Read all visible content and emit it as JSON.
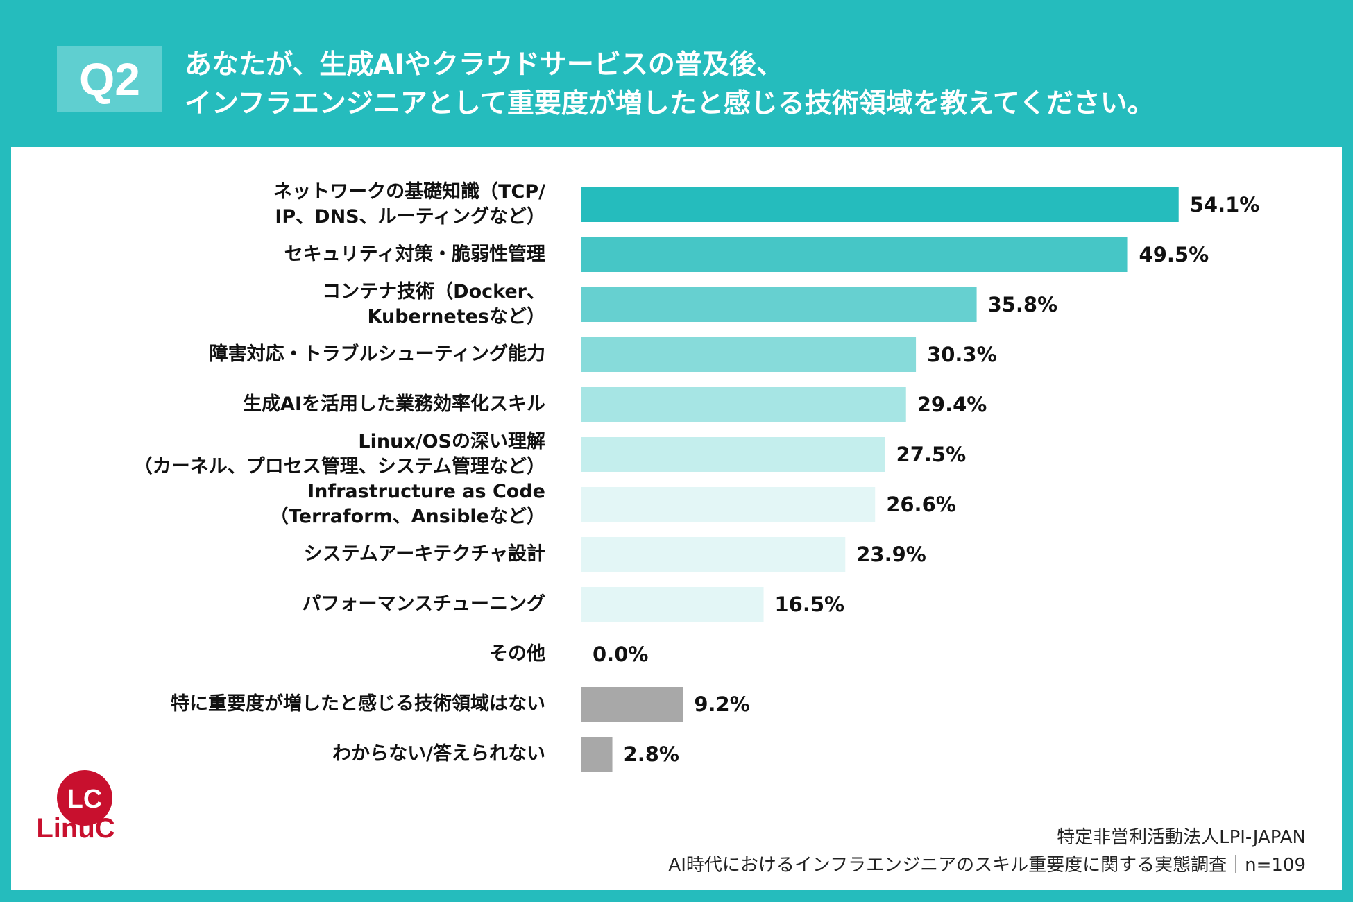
{
  "header": {
    "badge": "Q2",
    "question_line1": "あなたが、生成AIやクラウドサービスの普及後、",
    "question_line2": "インフラエンジニアとして重要度が増したと感じる技術領域を教えてください。"
  },
  "chart_data": {
    "type": "bar",
    "orientation": "horizontal",
    "unit": "%",
    "xlim": [
      0,
      100
    ],
    "categories": [
      [
        "ネットワークの基礎知識（TCP/",
        "IP、DNS、ルーティングなど）"
      ],
      [
        "セキュリティ対策・脆弱性管理"
      ],
      [
        "コンテナ技術（Docker、",
        "Kubernetesなど）"
      ],
      [
        "障害対応・トラブルシューティング能力"
      ],
      [
        "生成AIを活用した業務効率化スキル"
      ],
      [
        "Linux/OSの深い理解",
        "（カーネル、プロセス管理、システム管理など）"
      ],
      [
        "Infrastructure as Code",
        "（Terraform、Ansibleなど）"
      ],
      [
        "システムアーキテクチャ設計"
      ],
      [
        "パフォーマンスチューニング"
      ],
      [
        "その他"
      ],
      [
        "特に重要度が増したと感じる技術領域はない"
      ],
      [
        "わからない/答えられない"
      ]
    ],
    "values": [
      54.1,
      49.5,
      35.8,
      30.3,
      29.4,
      27.5,
      26.6,
      23.9,
      16.5,
      0.0,
      9.2,
      2.8
    ],
    "value_labels": [
      "54.1%",
      "49.5%",
      "35.8%",
      "30.3%",
      "29.4%",
      "27.5%",
      "26.6%",
      "23.9%",
      "16.5%",
      "0.0%",
      "9.2%",
      "2.8%"
    ],
    "bar_colors": [
      "#25bcbd",
      "#46c6c6",
      "#66d0d0",
      "#87dbda",
      "#a6e5e4",
      "#c4eeed",
      "#e3f6f6",
      "#e3f6f6",
      "#e3f6f6",
      "#e3f6f6",
      "#a8a8a8",
      "#a8a8a8"
    ]
  },
  "brand": {
    "logo_mark": "LC",
    "logo_name": "LinuC"
  },
  "footer": {
    "source_line1": "特定非営利活動法人LPI-JAPAN",
    "source_line2": "AI時代におけるインフラエンジニアのスキル重要度に関する実態調査｜n=109"
  }
}
